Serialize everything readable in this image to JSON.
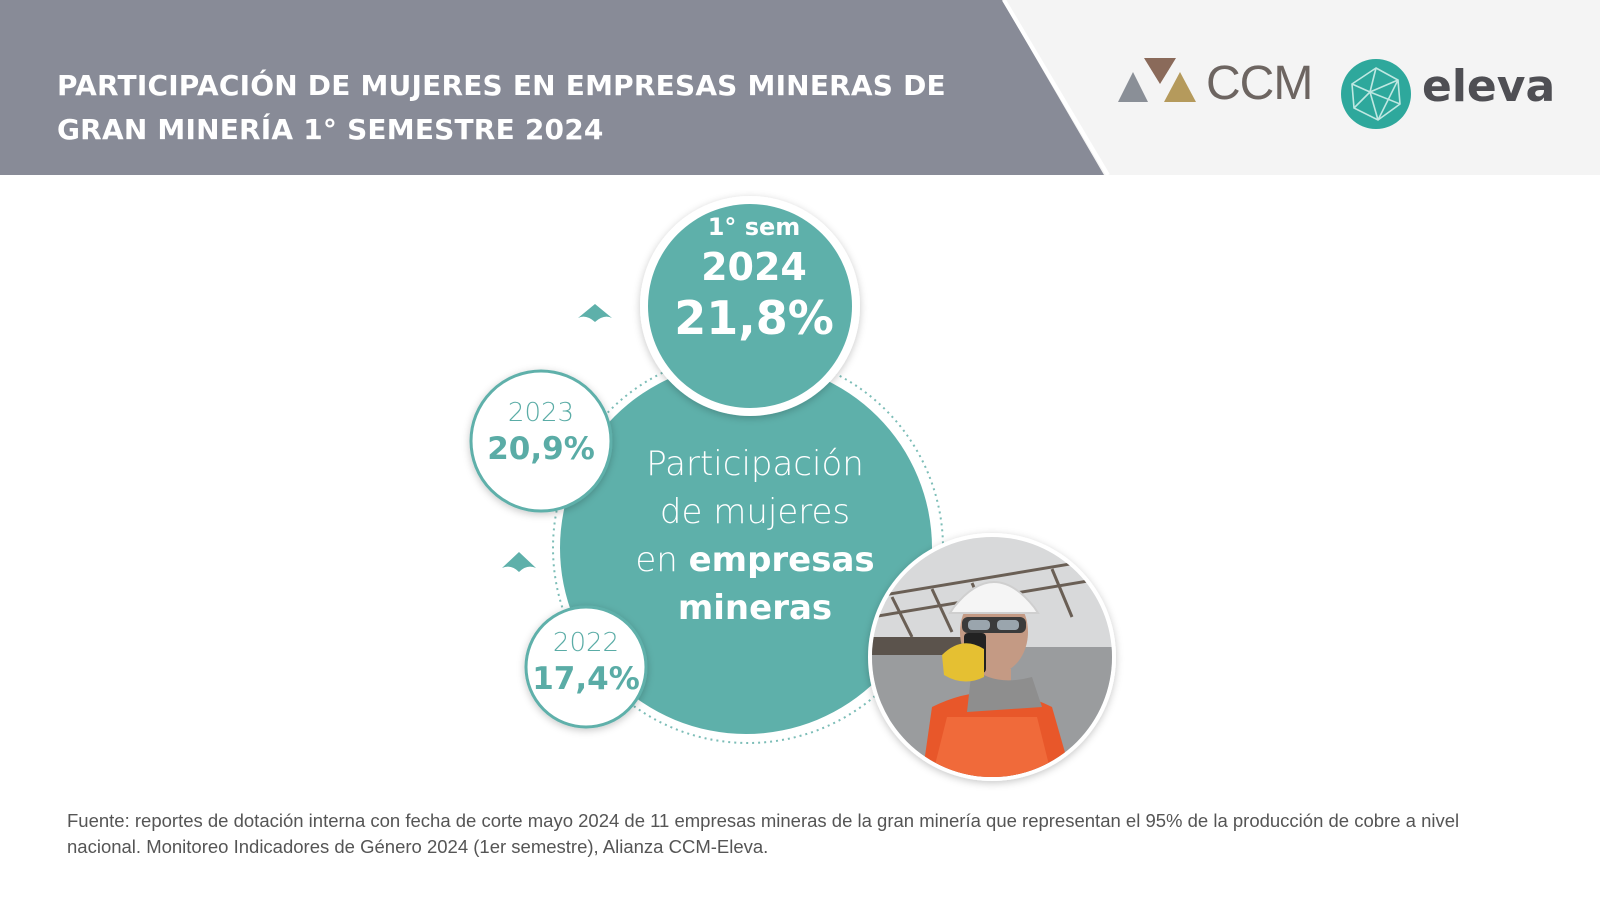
{
  "header": {
    "title_line1": "PARTICIPACIÓN DE MUJERES EN EMPRESAS MINERAS DE",
    "title_line2": "GRAN MINERÍA 1° SEMESTRE 2024",
    "band_color": "#888b97"
  },
  "logos": {
    "ccm": "CCM",
    "eleva": "eleva",
    "eleva_color": "#2ea89c"
  },
  "center": {
    "line1": "Participación",
    "line2": "de mujeres",
    "line3_light": "en",
    "line3_bold": "empresas",
    "line4_bold": "mineras",
    "color": "#5eb0aa"
  },
  "stats": [
    {
      "label": "1° sem",
      "year": "2024",
      "value": "21,8%"
    },
    {
      "year": "2023",
      "value": "20,9%"
    },
    {
      "year": "2022",
      "value": "17,4%"
    }
  ],
  "icons": {
    "up_arrow_1": "up-arrow-icon",
    "up_arrow_2": "up-arrow-icon"
  },
  "source": "Fuente: reportes de dotación interna con fecha de corte mayo 2024 de 11 empresas mineras de la gran minería que representan el 95% de la producción de cobre a nivel nacional. Monitoreo Indicadores de Género 2024 (1er semestre), Alianza CCM-Eleva."
}
